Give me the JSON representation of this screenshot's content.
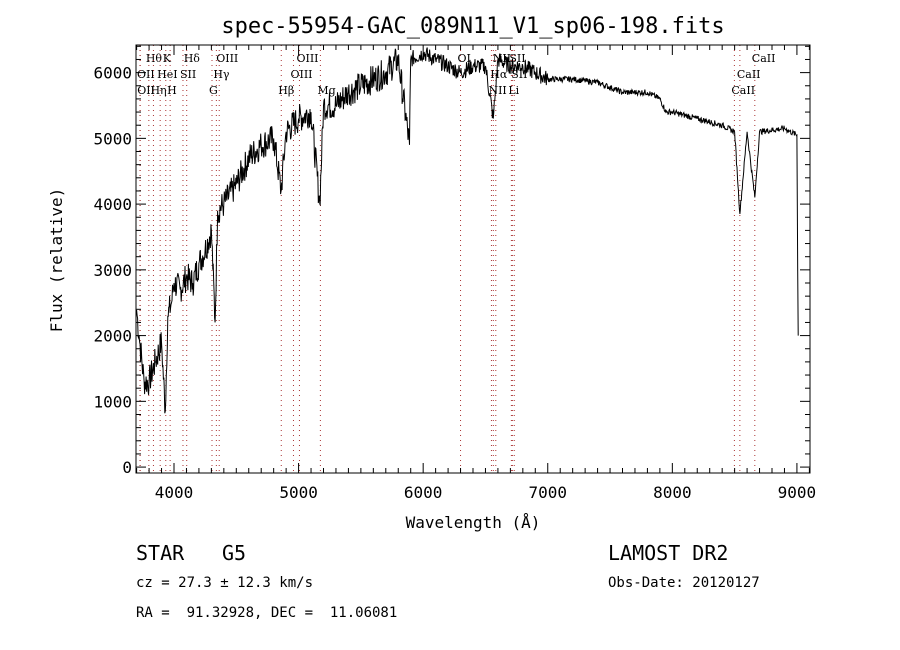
{
  "chart_data": {
    "type": "line",
    "title": "spec-55954-GAC_089N11_V1_sp06-198.fits",
    "xlabel": "Wavelength (Å)",
    "ylabel": "Flux (relative)",
    "xlim": [
      3695,
      9105
    ],
    "ylim": [
      -90,
      6420
    ],
    "xticks": [
      4000,
      5000,
      6000,
      7000,
      8000,
      9000
    ],
    "yticks": [
      0,
      1000,
      2000,
      3000,
      4000,
      5000,
      6000
    ],
    "grid": false,
    "series": [
      {
        "name": "spectrum",
        "x": [
          3700,
          3720,
          3760,
          3800,
          3850,
          3900,
          3930,
          3950,
          3980,
          4000,
          4050,
          4100,
          4150,
          4200,
          4250,
          4300,
          4330,
          4350,
          4400,
          4500,
          4600,
          4700,
          4800,
          4860,
          4900,
          5000,
          5100,
          5170,
          5200,
          5300,
          5400,
          5500,
          5600,
          5700,
          5800,
          5890,
          5900,
          6000,
          6100,
          6200,
          6300,
          6400,
          6500,
          6563,
          6600,
          6700,
          6800,
          6900,
          7000,
          7200,
          7400,
          7600,
          7800,
          7900,
          7950,
          8000,
          8200,
          8400,
          8500,
          8542,
          8600,
          8662,
          8700,
          8900,
          9000,
          9010
        ],
        "y": [
          2390,
          2000,
          1300,
          1300,
          1600,
          1900,
          850,
          2300,
          2500,
          2800,
          2700,
          2900,
          2800,
          3100,
          3300,
          3600,
          2200,
          3900,
          4000,
          4300,
          4700,
          4900,
          5000,
          4200,
          5100,
          5300,
          5400,
          4000,
          5500,
          5500,
          5700,
          5800,
          5900,
          6000,
          6200,
          4900,
          6200,
          6300,
          6200,
          6100,
          6000,
          6100,
          6100,
          5300,
          6200,
          6100,
          6100,
          6000,
          5900,
          5900,
          5850,
          5700,
          5700,
          5600,
          5400,
          5400,
          5300,
          5200,
          5100,
          3850,
          5100,
          4100,
          5100,
          5150,
          5050,
          2000
        ]
      }
    ],
    "line_markers": [
      {
        "label": "Hθ",
        "wavelength": 3798,
        "row": 0
      },
      {
        "label": "K",
        "wavelength": 3934,
        "row": 0
      },
      {
        "label": "Hδ",
        "wavelength": 4102,
        "row": 0
      },
      {
        "label": "OIII",
        "wavelength": 4363,
        "row": 0
      },
      {
        "label": "OIII",
        "wavelength": 5007,
        "row": 0
      },
      {
        "label": "OI",
        "wavelength": 6300,
        "row": 0
      },
      {
        "label": "NII",
        "wavelength": 6583,
        "row": 0
      },
      {
        "label": "SII",
        "wavelength": 6716,
        "row": 0
      },
      {
        "label": "OII",
        "wavelength": 3727,
        "row": 1
      },
      {
        "label": "HeI",
        "wavelength": 3889,
        "row": 1
      },
      {
        "label": "SII",
        "wavelength": 4072,
        "row": 1
      },
      {
        "label": "Hγ",
        "wavelength": 4340,
        "row": 1
      },
      {
        "label": "OIII",
        "wavelength": 4959,
        "row": 1
      },
      {
        "label": "Hα",
        "wavelength": 6563,
        "row": 1
      },
      {
        "label": "SII",
        "wavelength": 6731,
        "row": 1
      },
      {
        "label": "OII",
        "wavelength": 3729,
        "row": 2
      },
      {
        "label": "Hη",
        "wavelength": 3835,
        "row": 2
      },
      {
        "label": "H",
        "wavelength": 3969,
        "row": 2
      },
      {
        "label": "G",
        "wavelength": 4305,
        "row": 2
      },
      {
        "label": "Hβ",
        "wavelength": 4861,
        "row": 2
      },
      {
        "label": "Mg",
        "wavelength": 5175,
        "row": 2
      },
      {
        "label": "NII",
        "wavelength": 6548,
        "row": 2
      },
      {
        "label": "Li",
        "wavelength": 6708,
        "row": 2
      },
      {
        "label": "CaII",
        "wavelength": 8662,
        "row": 0
      },
      {
        "label": "CaII",
        "wavelength": 8542,
        "row": 1
      },
      {
        "label": "CaII",
        "wavelength": 8498,
        "row": 2
      }
    ]
  },
  "info": {
    "class": "STAR",
    "subclass": "G5",
    "survey": "LAMOST DR2",
    "cz": "cz = 27.3 ± 12.3 km/s",
    "obs_date": "Obs-Date: 20120127",
    "radec": "RA =  91.32928, DEC =  11.06081"
  }
}
